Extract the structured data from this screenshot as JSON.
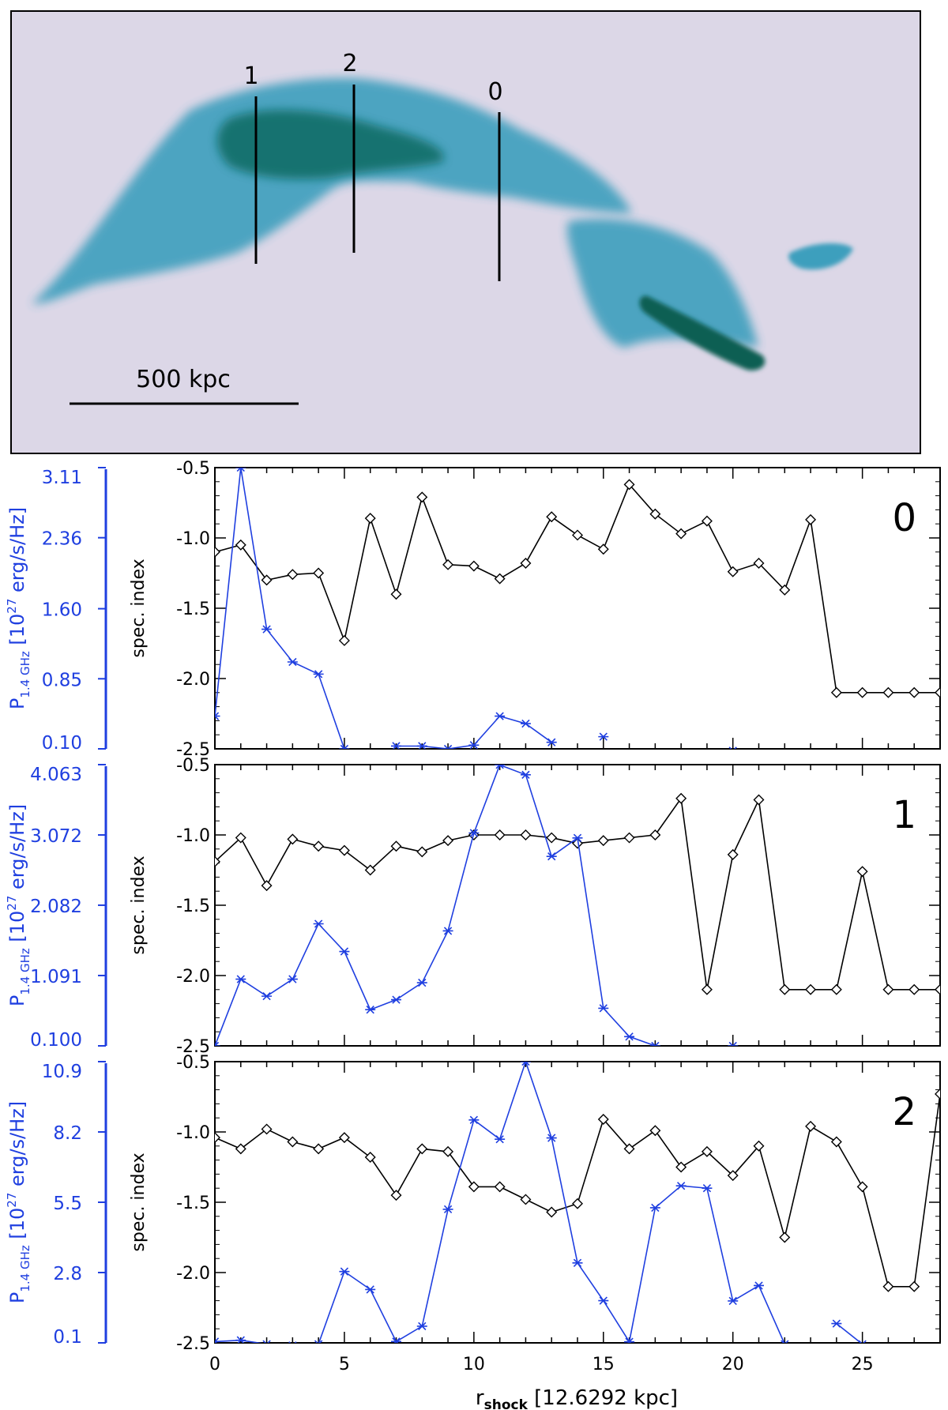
{
  "map": {
    "cut_labels": [
      "1",
      "2",
      "0"
    ],
    "scalebar_label": "500 kpc",
    "colors": {
      "background": "#dcd7e7",
      "emission_light": "#3e9fbd",
      "emission_dark": "#0a6a5c"
    }
  },
  "shared": {
    "xlabel_main": "r",
    "xlabel_sub": "shock",
    "xlabel_unit": " [12.6292 kpc]",
    "left_ylabel_main": "P",
    "left_ylabel_sub": "1.4 GHz",
    "left_ylabel_unit": " [10",
    "left_ylabel_exp": "27",
    "left_ylabel_tail": " erg/s/Hz]",
    "right_ylabel": "spec. index",
    "x_ticks": [
      "0",
      "5",
      "10",
      "15",
      "20",
      "25"
    ],
    "spec_ticks": [
      "-0.5",
      "-1.0",
      "-1.5",
      "-2.0",
      "-2.5"
    ],
    "colors": {
      "spec": "#000000",
      "power": "#1f3fe0"
    }
  },
  "chart_data": [
    {
      "type": "line",
      "panel_label": "0",
      "x": [
        0,
        1,
        2,
        3,
        4,
        5,
        6,
        7,
        8,
        9,
        10,
        11,
        12,
        13,
        14,
        15,
        16,
        17,
        18,
        19,
        20,
        21,
        22,
        23,
        24,
        25,
        26,
        27,
        28
      ],
      "xlim": [
        0,
        28
      ],
      "spec_ylim": [
        -2.5,
        -0.5
      ],
      "power_ticks": [
        "3.11",
        "2.36",
        "1.60",
        "0.85",
        "0.10"
      ],
      "power_ylim": [
        0.1,
        3.11
      ],
      "series": [
        {
          "axis": "spec",
          "marker": "diamond",
          "values": [
            -1.1,
            -1.05,
            -1.3,
            -1.26,
            -1.25,
            -1.73,
            -0.86,
            -1.4,
            -0.71,
            -1.19,
            -1.2,
            -1.29,
            -1.18,
            -0.85,
            -0.98,
            -1.08,
            -0.62,
            -0.83,
            -0.97,
            -0.88,
            -1.24,
            -1.18,
            -1.37,
            -0.87,
            -2.1,
            -2.1,
            -2.1,
            -2.1,
            -2.1
          ]
        },
        {
          "axis": "power",
          "marker": "asterisk",
          "values": [
            0.45,
            3.11,
            1.38,
            1.03,
            0.9,
            0.1,
            null,
            0.13,
            0.13,
            0.1,
            0.14,
            0.45,
            0.37,
            0.17,
            null,
            0.23,
            null,
            null,
            null,
            null,
            0.08,
            null,
            null,
            null,
            null,
            null,
            null,
            null,
            null
          ]
        }
      ]
    },
    {
      "type": "line",
      "panel_label": "1",
      "x": [
        0,
        1,
        2,
        3,
        4,
        5,
        6,
        7,
        8,
        9,
        10,
        11,
        12,
        13,
        14,
        15,
        16,
        17,
        18,
        19,
        20,
        21,
        22,
        23,
        24,
        25,
        26,
        27,
        28
      ],
      "xlim": [
        0,
        28
      ],
      "spec_ylim": [
        -2.5,
        -0.5
      ],
      "power_ticks": [
        "4.063",
        "3.072",
        "2.082",
        "1.091",
        "0.100"
      ],
      "power_ylim": [
        0.1,
        4.063
      ],
      "series": [
        {
          "axis": "spec",
          "marker": "diamond",
          "values": [
            -1.19,
            -1.02,
            -1.36,
            -1.03,
            -1.08,
            -1.11,
            -1.25,
            -1.08,
            -1.12,
            -1.04,
            -1.0,
            -1.0,
            -1.0,
            -1.02,
            -1.06,
            -1.04,
            -1.02,
            -1.0,
            -0.74,
            -2.1,
            -1.14,
            -0.75,
            -2.1,
            -2.1,
            -2.1,
            -1.26,
            -2.1,
            -2.1,
            -2.1
          ]
        },
        {
          "axis": "power",
          "marker": "asterisk",
          "values": [
            0.1,
            1.04,
            0.8,
            1.04,
            1.82,
            1.43,
            0.61,
            0.75,
            0.99,
            1.72,
            3.1,
            4.06,
            3.92,
            2.77,
            3.03,
            0.63,
            0.23,
            0.1,
            null,
            null,
            0.1,
            null,
            null,
            null,
            null,
            null,
            null,
            null,
            null
          ]
        }
      ]
    },
    {
      "type": "line",
      "panel_label": "2",
      "x": [
        0,
        1,
        2,
        3,
        4,
        5,
        6,
        7,
        8,
        9,
        10,
        11,
        12,
        13,
        14,
        15,
        16,
        17,
        18,
        19,
        20,
        21,
        22,
        23,
        24,
        25,
        26,
        27,
        28
      ],
      "xlim": [
        0,
        28
      ],
      "spec_ylim": [
        -2.5,
        -0.5
      ],
      "power_ticks": [
        "10.9",
        "8.2",
        "5.5",
        "2.8",
        "0.1"
      ],
      "power_ylim": [
        0.1,
        10.9
      ],
      "series": [
        {
          "axis": "spec",
          "marker": "diamond",
          "values": [
            -1.04,
            -1.12,
            -0.98,
            -1.07,
            -1.12,
            -1.04,
            -1.18,
            -1.45,
            -1.12,
            -1.14,
            -1.39,
            -1.39,
            -1.48,
            -1.57,
            -1.51,
            -0.91,
            -1.12,
            -0.99,
            -1.25,
            -1.14,
            -1.31,
            -1.1,
            -1.75,
            -0.96,
            -1.07,
            -1.39,
            -2.1,
            -2.1,
            -0.73
          ]
        },
        {
          "axis": "power",
          "marker": "asterisk",
          "values": [
            0.15,
            0.2,
            0.05,
            0.0,
            0.05,
            2.84,
            2.15,
            0.15,
            0.74,
            5.23,
            8.66,
            7.92,
            10.9,
            7.97,
            3.17,
            1.72,
            0.14,
            5.29,
            6.13,
            6.04,
            1.71,
            2.3,
            0.05,
            null,
            0.84,
            0.05,
            null,
            null,
            null
          ]
        }
      ]
    }
  ]
}
